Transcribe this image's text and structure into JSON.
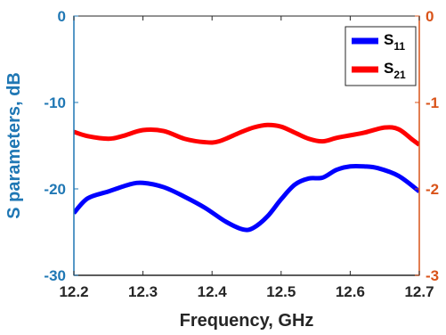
{
  "chart_data": {
    "type": "line",
    "title": "",
    "xlabel": "Frequency, GHz",
    "ylabel_left": "S parameters, dB",
    "x_ticks": [
      "12.2",
      "12.3",
      "12.4",
      "12.5",
      "12.6",
      "12.7"
    ],
    "y_left_ticks": [
      "0",
      "-10",
      "-20",
      "-30"
    ],
    "y_right_ticks": [
      "0",
      "-1",
      "-2",
      "-3"
    ],
    "xlim": [
      12.2,
      12.7
    ],
    "ylim_left": [
      -30,
      0
    ],
    "ylim_right": [
      -3,
      0
    ],
    "grid": false,
    "legend_position": "top-right",
    "colors": {
      "left_axis": "#1f77b4",
      "right_axis": "#d95319",
      "s11": "#0000ff",
      "s21": "#ff0000"
    },
    "series": [
      {
        "name": "S11",
        "legend_main": "S",
        "legend_sub": "11",
        "axis": "left",
        "x": [
          12.2,
          12.22,
          12.25,
          12.28,
          12.3,
          12.33,
          12.36,
          12.39,
          12.42,
          12.445,
          12.46,
          12.48,
          12.5,
          12.52,
          12.54,
          12.56,
          12.58,
          12.6,
          12.62,
          12.64,
          12.67,
          12.7
        ],
        "y": [
          -22.8,
          -21.1,
          -20.3,
          -19.5,
          -19.3,
          -19.8,
          -20.9,
          -22.2,
          -23.8,
          -24.7,
          -24.5,
          -23.2,
          -21.2,
          -19.5,
          -18.8,
          -18.7,
          -17.8,
          -17.4,
          -17.4,
          -17.6,
          -18.5,
          -20.3
        ]
      },
      {
        "name": "S21",
        "legend_main": "S",
        "legend_sub": "21",
        "axis": "right",
        "x": [
          12.2,
          12.22,
          12.25,
          12.27,
          12.3,
          12.33,
          12.36,
          12.39,
          12.41,
          12.44,
          12.46,
          12.48,
          12.5,
          12.52,
          12.54,
          12.56,
          12.58,
          12.6,
          12.62,
          12.65,
          12.67,
          12.69,
          12.7
        ],
        "y": [
          -1.34,
          -1.39,
          -1.42,
          -1.39,
          -1.32,
          -1.33,
          -1.42,
          -1.46,
          -1.45,
          -1.35,
          -1.29,
          -1.26,
          -1.28,
          -1.35,
          -1.42,
          -1.45,
          -1.41,
          -1.38,
          -1.35,
          -1.29,
          -1.31,
          -1.43,
          -1.49
        ]
      }
    ]
  }
}
